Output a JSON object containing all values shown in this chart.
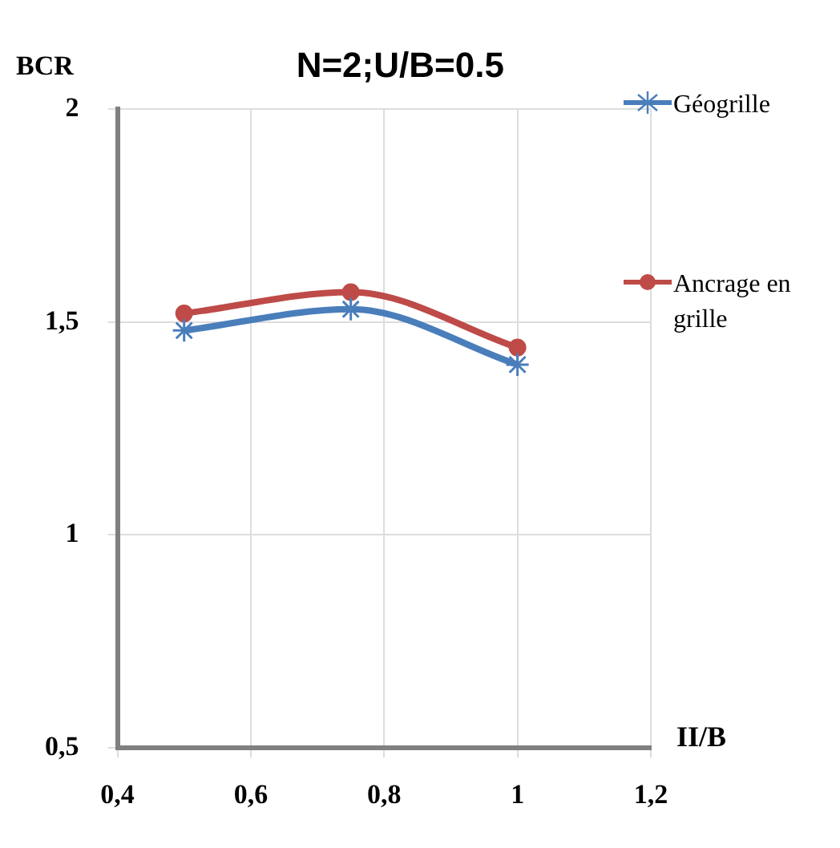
{
  "chart_data": {
    "type": "line",
    "title": "N=2;U/B=0.5",
    "xlabel": "II/B",
    "ylabel": "BCR",
    "x": [
      0.5,
      0.75,
      1
    ],
    "series": [
      {
        "name": "Géogrille",
        "color": "#4a7ebb",
        "values": [
          1.48,
          1.53,
          1.4
        ],
        "marker": "cross"
      },
      {
        "name": "Ancrage en grille",
        "color": "#be4b48",
        "values": [
          1.52,
          1.57,
          1.44
        ],
        "marker": "circle"
      }
    ],
    "xlim": [
      0.4,
      1.2
    ],
    "xticks": [
      {
        "value": 0.4,
        "label": "0,4"
      },
      {
        "value": 0.6,
        "label": "0,6"
      },
      {
        "value": 0.8,
        "label": "0,8"
      },
      1,
      {
        "value": 1.2,
        "label": "1,2"
      }
    ],
    "ylim": [
      0.5,
      2
    ],
    "yticks": [
      {
        "value": 0.5,
        "label": "0,5"
      },
      1,
      {
        "value": 1.5,
        "label": "1,5"
      },
      2
    ],
    "grid": true,
    "legend": "right"
  }
}
